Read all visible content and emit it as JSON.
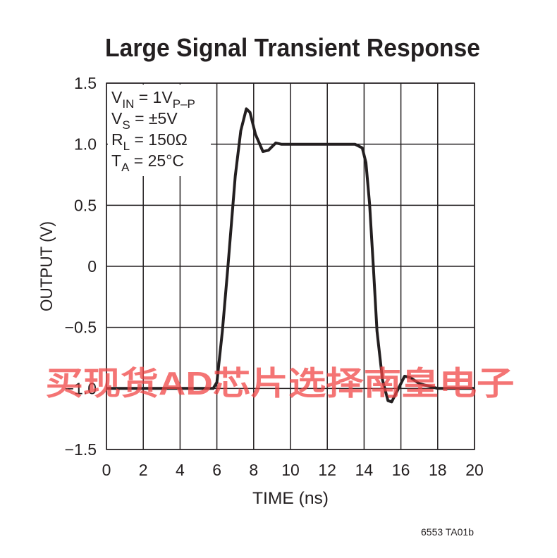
{
  "chart_data": {
    "type": "line",
    "title": "Large Signal Transient Response",
    "xlabel": "TIME (ns)",
    "ylabel": "OUTPUT (V)",
    "x": [
      0,
      2,
      4,
      5.8,
      6,
      6.3,
      6.6,
      7,
      7.3,
      7.6,
      7.8,
      8.1,
      8.5,
      8.8,
      9.2,
      9.5,
      11,
      13.5,
      13.9,
      14.1,
      14.3,
      14.5,
      14.7,
      15,
      15.3,
      15.5,
      15.8,
      16.2,
      16.5,
      17,
      17.5,
      18,
      20
    ],
    "values": [
      -1,
      -1,
      -1,
      -1,
      -0.95,
      -0.53,
      0,
      0.74,
      1.11,
      1.29,
      1.26,
      1.08,
      0.94,
      0.95,
      1.01,
      1,
      1,
      1,
      0.97,
      0.85,
      0.51,
      0,
      -0.53,
      -0.93,
      -1.1,
      -1.11,
      -1.02,
      -0.9,
      -0.91,
      -0.96,
      -0.98,
      -1,
      -1
    ],
    "color": "#231f20",
    "xlim": [
      0,
      20
    ],
    "xticks": [
      0,
      2,
      4,
      6,
      8,
      10,
      12,
      14,
      16,
      18,
      20
    ],
    "ylim": [
      -1.5,
      1.5
    ],
    "yticks": [
      {
        "value": -1.5,
        "label": "−1.5"
      },
      {
        "value": -1,
        "label": "−1.0"
      },
      {
        "value": -0.5,
        "label": "−0.5"
      },
      0,
      0.5,
      {
        "value": 1,
        "label": "1.0"
      },
      1.5
    ],
    "grid": true,
    "annotations": [
      [
        "V",
        "IN",
        " = 1V",
        "P–P"
      ],
      [
        "V",
        "S",
        " = ±5V"
      ],
      [
        "R",
        "L",
        " = 150Ω"
      ],
      [
        "T",
        "A",
        " = 25°C"
      ]
    ],
    "figure_id": "6553 TA01b",
    "watermark": "买现货AD芯片选择南皇电子"
  }
}
